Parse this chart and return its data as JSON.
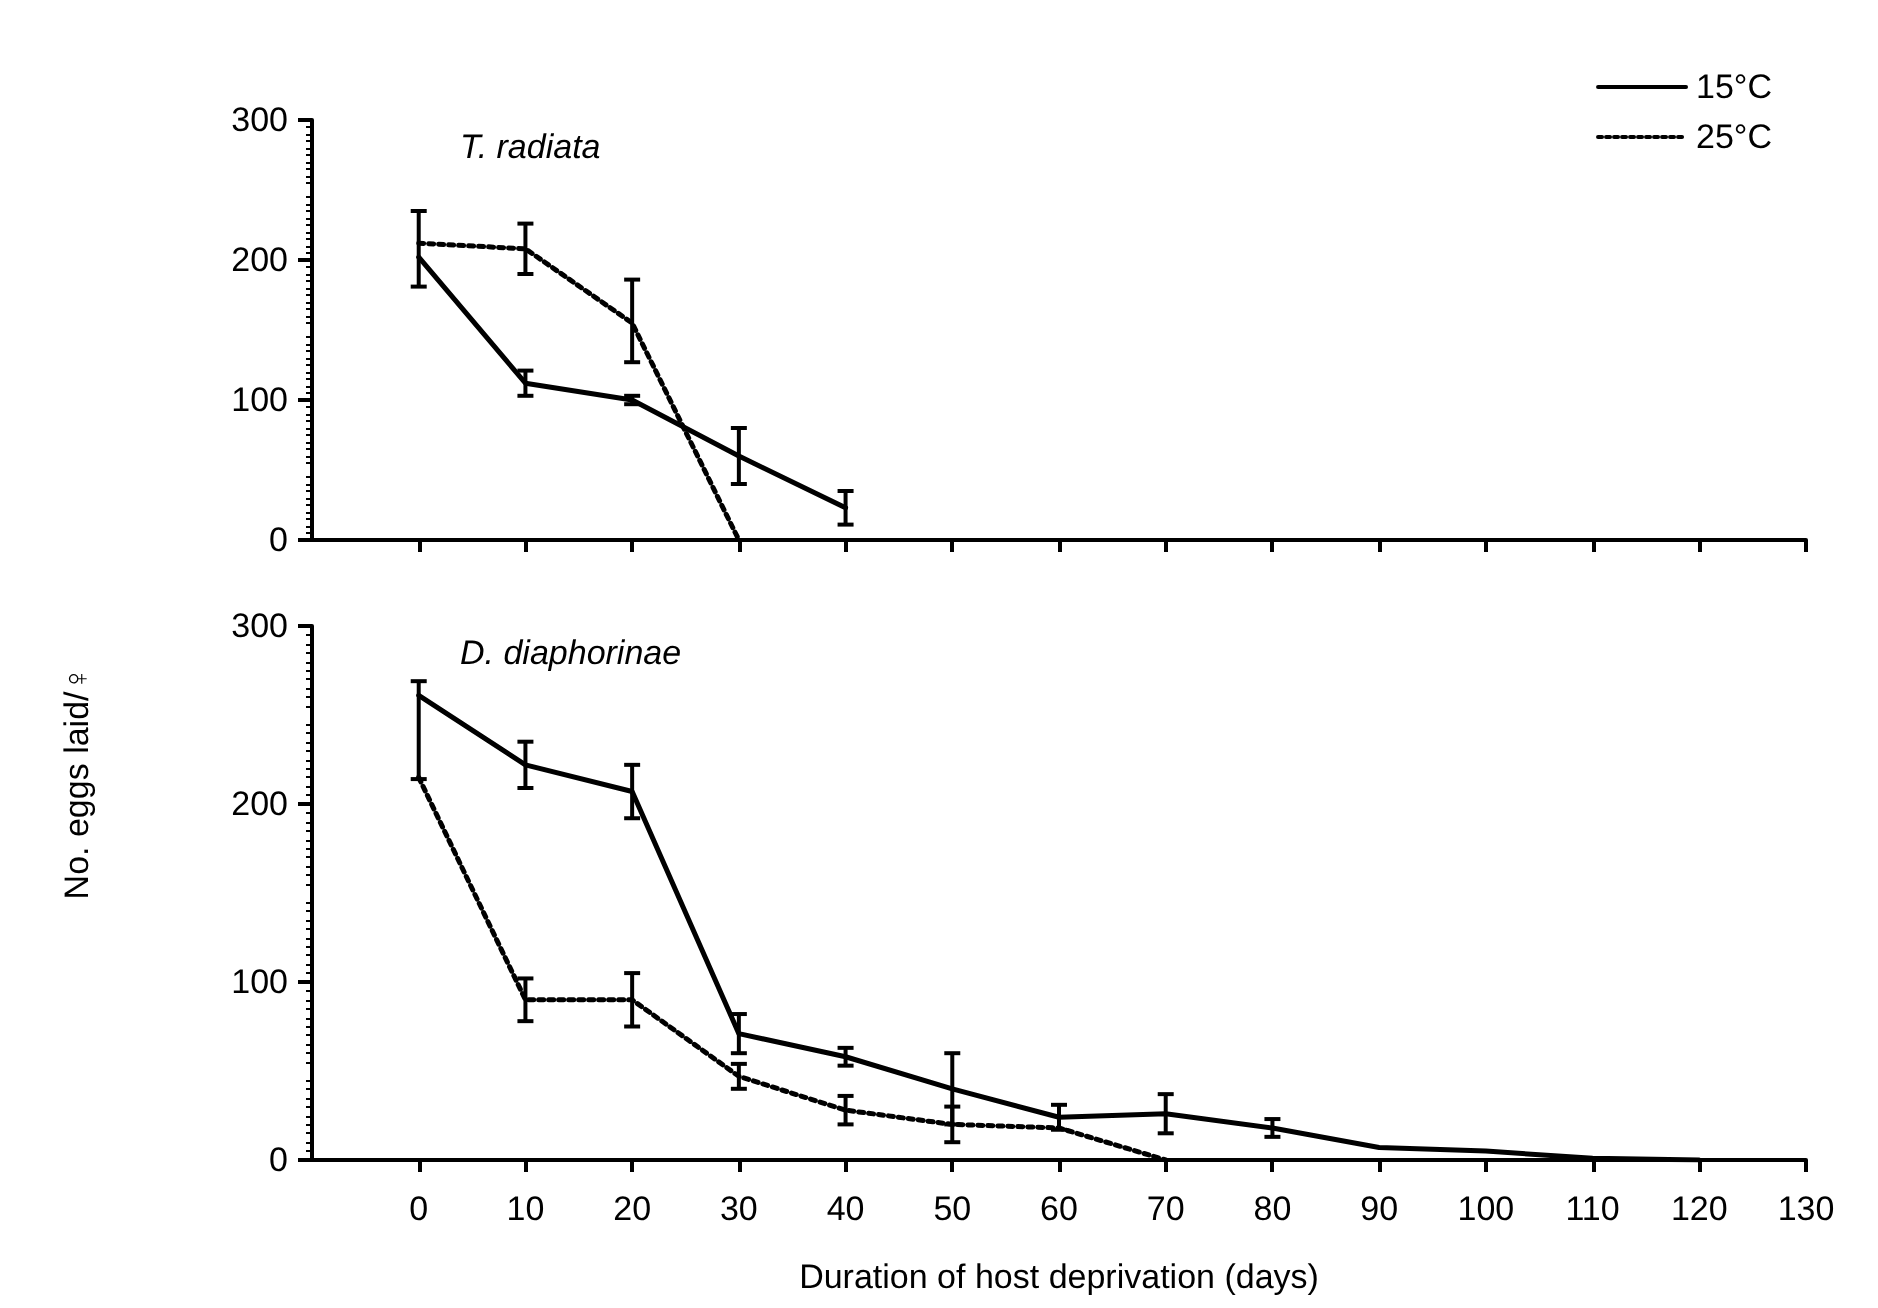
{
  "chart_data": [
    {
      "type": "line",
      "annotations": [
        "T. radiata"
      ],
      "ylabel": "No. eggs laid/♀",
      "xlim": [
        -10,
        130
      ],
      "xticks": [
        0,
        10,
        20,
        30,
        40,
        50,
        60,
        70,
        80,
        90,
        100,
        110,
        120,
        130
      ],
      "ylim": [
        0,
        300
      ],
      "yticks": [
        0,
        100,
        200,
        300
      ],
      "tick_labels": "y",
      "legend": "top right",
      "marker": "none",
      "grid": false,
      "series": [
        {
          "name": "15°C",
          "color": "#000000",
          "line_style": "solid",
          "x": [
            0,
            10,
            20,
            30,
            40
          ],
          "values": [
            202,
            112,
            100,
            60,
            23
          ],
          "errors": [
            [
              181,
              235
            ],
            9,
            3,
            20,
            12
          ]
        },
        {
          "name": "25°C",
          "color": "#000000",
          "line_style": "dotted",
          "x": [
            0,
            10,
            20,
            30
          ],
          "values": [
            212,
            208,
            155,
            0
          ],
          "errors": [
            null,
            18,
            [
              127,
              186
            ],
            null
          ]
        }
      ]
    },
    {
      "type": "line",
      "annotations": [
        "D. diaphorinae"
      ],
      "xlabel": "Duration of host deprivation (days)",
      "xlim": [
        -10,
        130
      ],
      "xticks": [
        0,
        10,
        20,
        30,
        40,
        50,
        60,
        70,
        80,
        90,
        100,
        110,
        120,
        130
      ],
      "ylim": [
        0,
        300
      ],
      "yticks": [
        0,
        100,
        200,
        300
      ],
      "marker": "none",
      "grid": false,
      "series": [
        {
          "color": "#000000",
          "line_style": "solid",
          "x": [
            0,
            10,
            20,
            30,
            40,
            50,
            60,
            70,
            80,
            90,
            100,
            110,
            120
          ],
          "values": [
            261,
            222,
            207,
            71,
            58,
            40,
            24,
            26,
            18,
            7,
            5,
            1,
            0
          ],
          "errors": [
            [
              214,
              269
            ],
            13,
            15,
            11,
            5,
            20,
            7,
            11,
            5,
            null,
            null,
            null,
            null
          ]
        },
        {
          "color": "#000000",
          "line_style": "dotted",
          "x": [
            0,
            10,
            20,
            30,
            40,
            50,
            60,
            70
          ],
          "values": [
            215,
            90,
            90,
            47,
            28,
            20,
            18,
            0
          ],
          "errors": [
            null,
            12,
            15,
            7,
            8,
            10,
            null,
            null
          ]
        }
      ]
    }
  ]
}
